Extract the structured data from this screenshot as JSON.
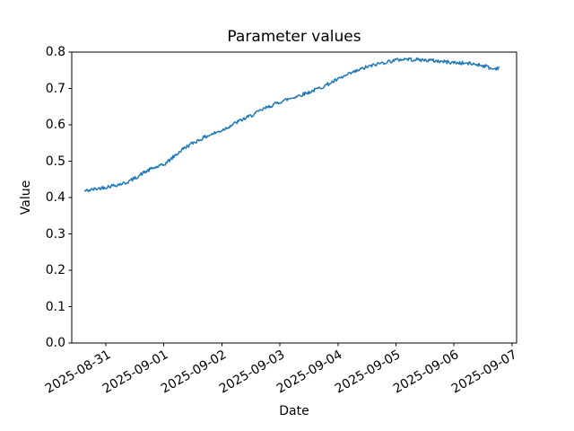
{
  "figure": {
    "background": "#ffffff",
    "text_color": "#000000",
    "spine_color": "#000000"
  },
  "chart_data": {
    "type": "line",
    "title": "Parameter values",
    "xlabel": "Date",
    "ylabel": "Value",
    "ylim": [
      0.0,
      0.8
    ],
    "yticks": [
      0.0,
      0.1,
      0.2,
      0.3,
      0.4,
      0.5,
      0.6,
      0.7,
      0.8
    ],
    "xticks": [
      {
        "day": 1,
        "label": "2025-08-31"
      },
      {
        "day": 2,
        "label": "2025-09-01"
      },
      {
        "day": 3,
        "label": "2025-09-02"
      },
      {
        "day": 4,
        "label": "2025-09-03"
      },
      {
        "day": 5,
        "label": "2025-09-04"
      },
      {
        "day": 6,
        "label": "2025-09-05"
      },
      {
        "day": 7,
        "label": "2025-09-06"
      },
      {
        "day": 8,
        "label": "2025-09-07"
      }
    ],
    "x_axis_range_days": [
      0.413,
      8.078
    ],
    "grid": false,
    "legend": "none",
    "series": [
      {
        "name": "parameter-values",
        "color": "#1f77b4",
        "line_width": 1.5,
        "noise_amplitude": 0.005,
        "x_days": [
          0.64,
          1.0,
          1.19,
          1.34,
          1.49,
          1.65,
          1.8,
          2.0,
          2.19,
          2.34,
          2.5,
          2.73,
          3.0,
          3.27,
          3.5,
          3.74,
          4.0,
          4.28,
          4.51,
          4.74,
          5.0,
          5.23,
          5.48,
          5.75,
          6.0,
          6.16,
          6.36,
          6.6,
          7.0,
          7.22,
          7.4,
          7.56,
          7.66,
          7.77
        ],
        "values": [
          0.418,
          0.429,
          0.435,
          0.44,
          0.452,
          0.468,
          0.48,
          0.49,
          0.515,
          0.535,
          0.55,
          0.568,
          0.585,
          0.608,
          0.625,
          0.645,
          0.663,
          0.678,
          0.69,
          0.705,
          0.725,
          0.742,
          0.758,
          0.77,
          0.778,
          0.781,
          0.779,
          0.777,
          0.771,
          0.769,
          0.766,
          0.761,
          0.753,
          0.757
        ]
      }
    ]
  }
}
